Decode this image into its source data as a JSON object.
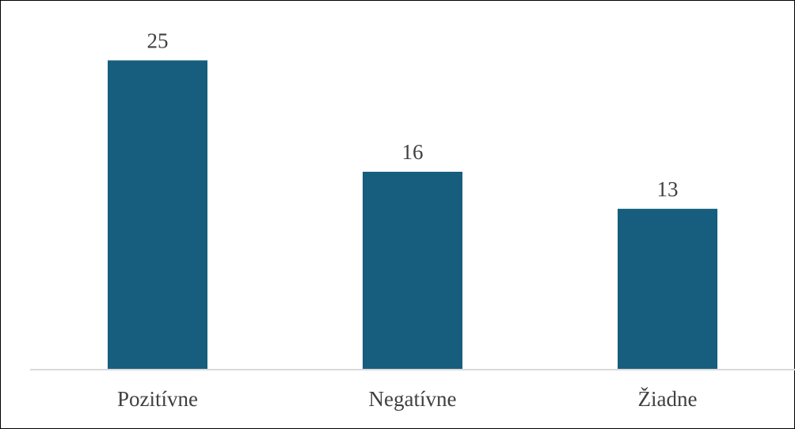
{
  "chart_data": {
    "type": "bar",
    "categories": [
      "Pozitívne",
      "Negatívne",
      "Žiadne"
    ],
    "values": [
      25,
      16,
      13
    ],
    "data_labels": [
      "25",
      "16",
      "13"
    ],
    "title": "",
    "xlabel": "",
    "ylabel": "",
    "ylim": [
      0,
      27.9
    ],
    "grid": false,
    "legend": "none",
    "bar_color": "#175E7E",
    "axis_color": "#D9D9D9",
    "text_color": "#404040"
  }
}
